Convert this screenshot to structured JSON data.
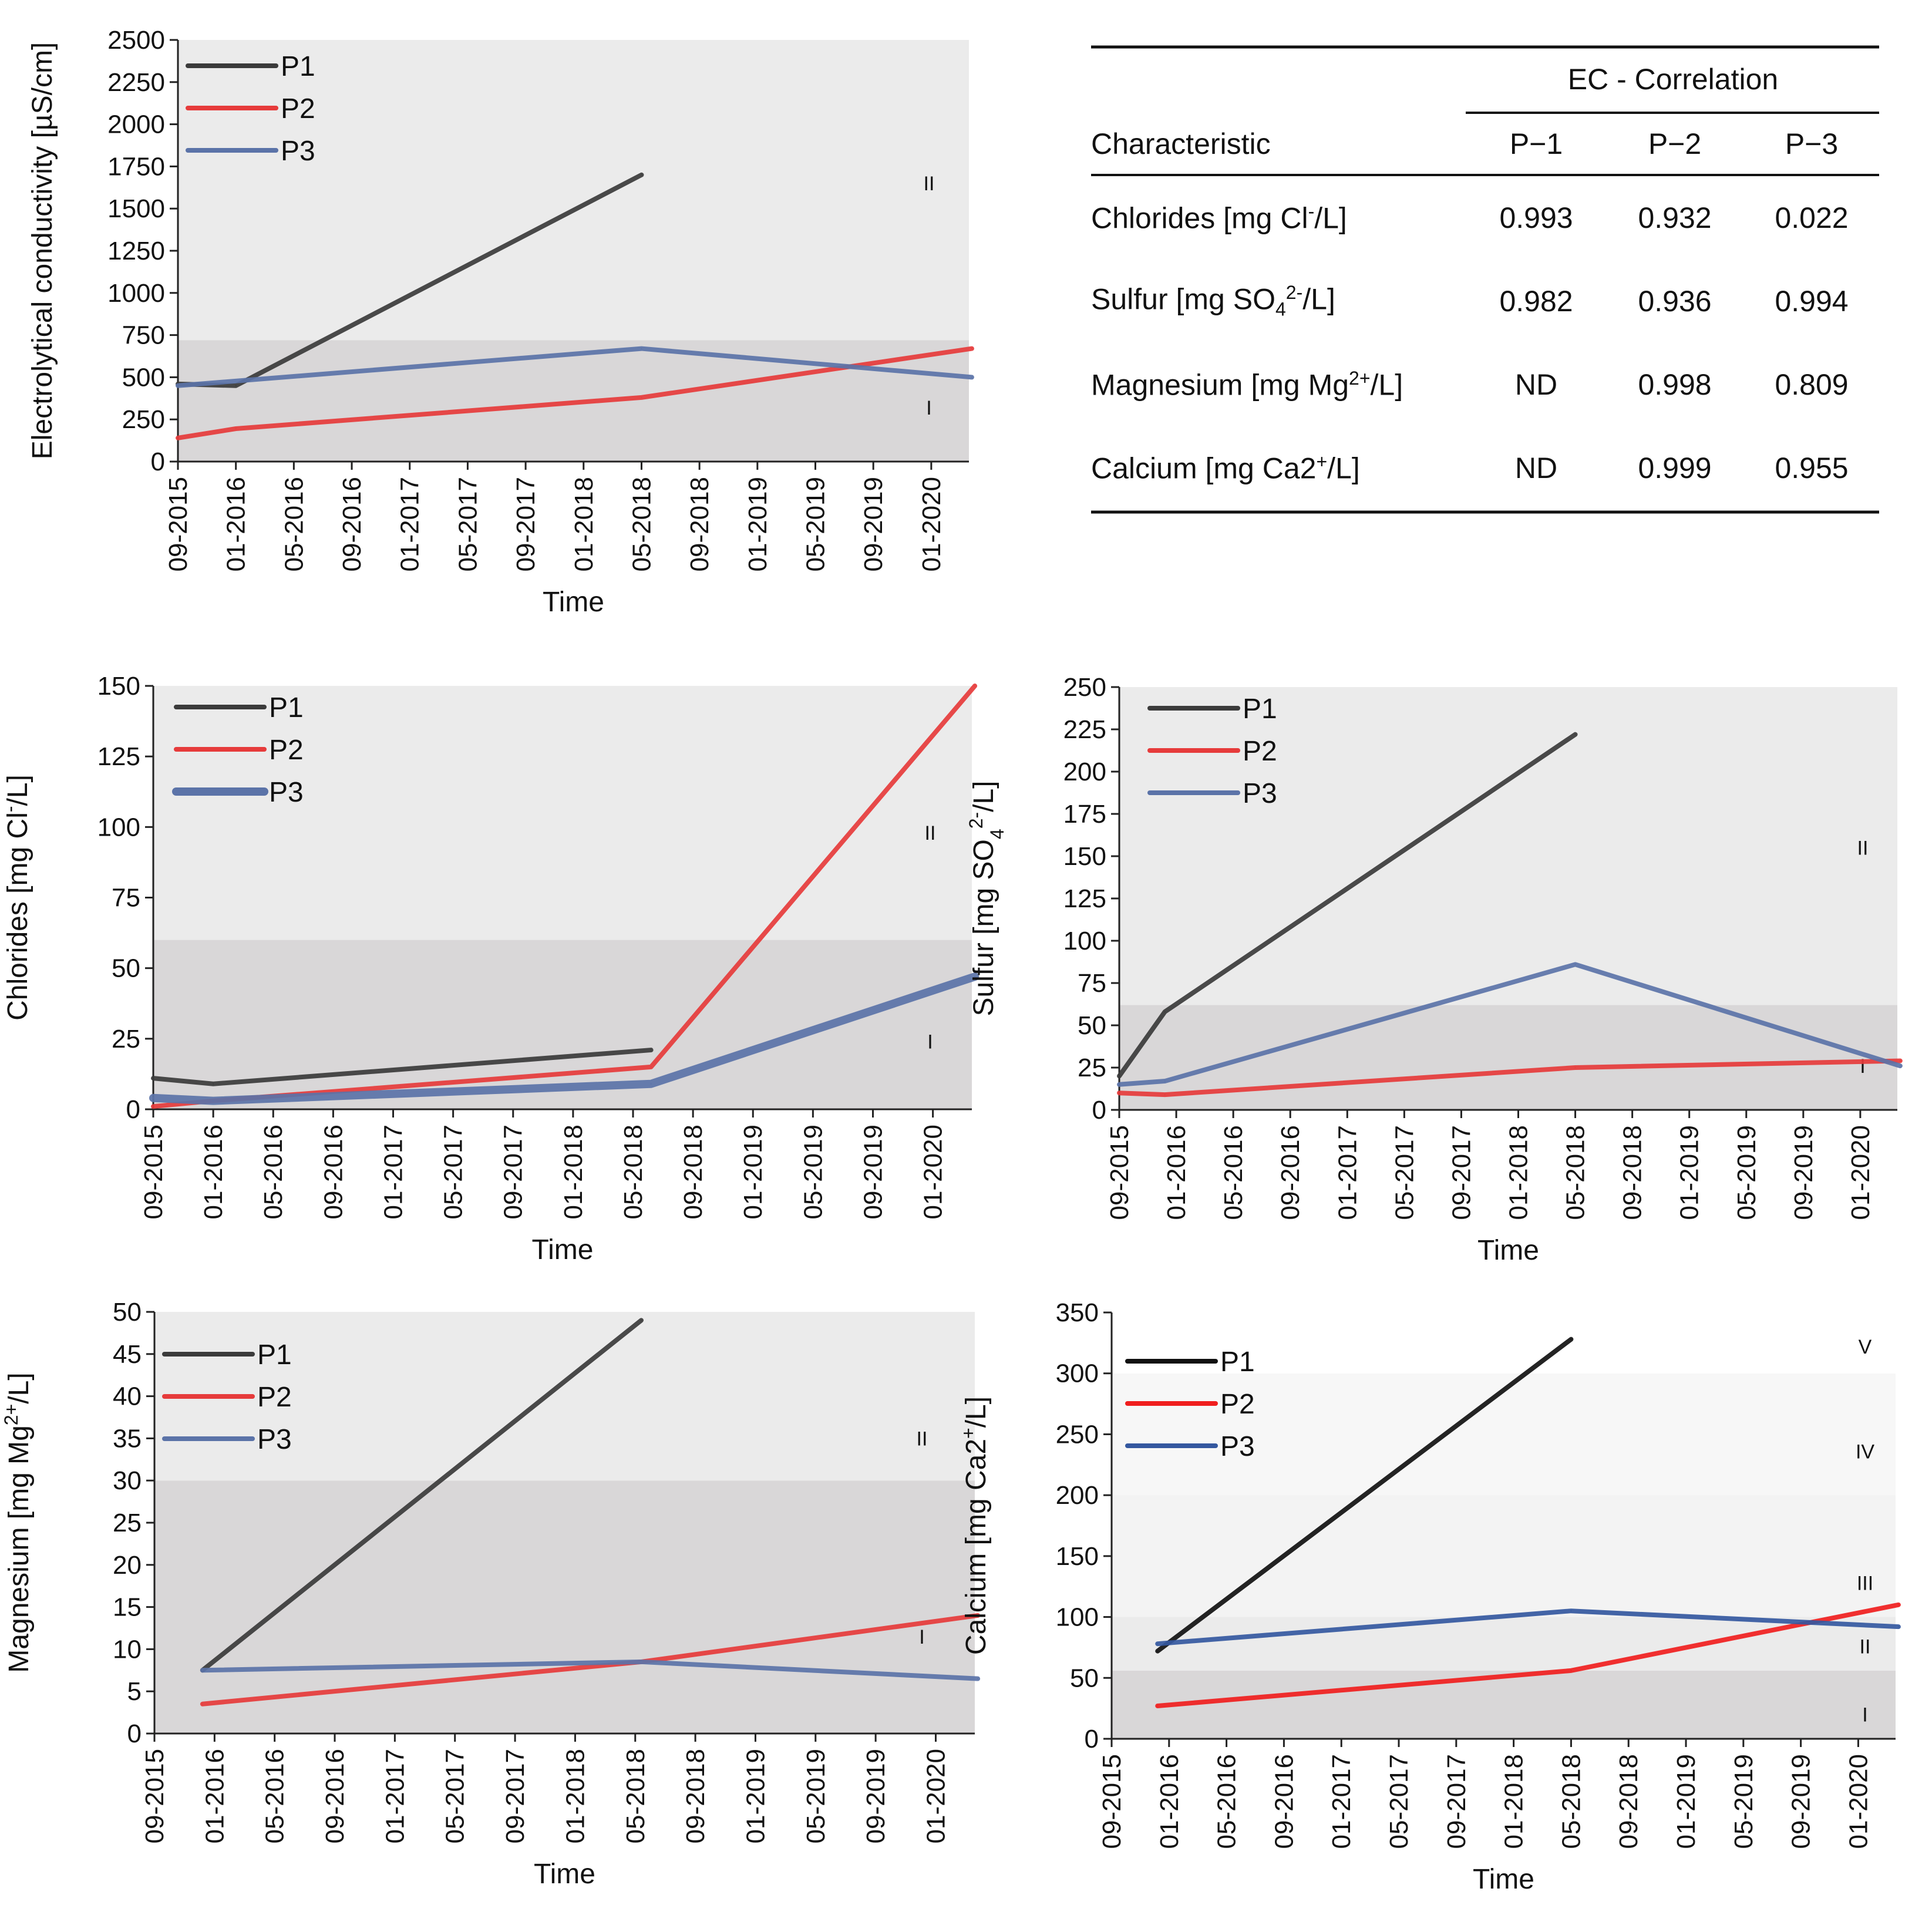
{
  "colors": {
    "P1": "#3b3b3b",
    "P2": "#e63b3b",
    "P3": "#5b73a8",
    "P1_dark": "#111111",
    "P2_bright": "#f01e1e",
    "P3_dark": "#34589f"
  },
  "table": {
    "group_header": "EC - Correlation",
    "header": [
      "Characteristic",
      "P−1",
      "P−2",
      "P−3"
    ],
    "rows": [
      {
        "pre": "Chlorides [mg Cl",
        "sup": "-",
        "sub": "",
        "post": "/L]",
        "v": [
          "0.993",
          "0.932",
          "0.022"
        ]
      },
      {
        "pre": "Sulfur [mg  SO",
        "sub": "4",
        "sup": "2-",
        "post": "/L]",
        "v": [
          "0.982",
          "0.936",
          "0.994"
        ]
      },
      {
        "pre": "Magnesium [mg Mg",
        "sub": "",
        "sup": "2+",
        "post": "/L]",
        "v": [
          "ND",
          "0.998",
          "0.809"
        ]
      },
      {
        "pre": "Calcium [mg Ca2",
        "sub": "",
        "sup": "+",
        "post": "/L]",
        "v": [
          "ND",
          "0.999",
          "0.955"
        ]
      }
    ]
  },
  "chart_data": [
    {
      "type": "line",
      "id": "ec",
      "ylabel": "Electrolytical conductivity [µS/cm]",
      "ylabel_parts": {
        "pre": "Electrolytical conductivity [µS/cm]",
        "sub": "",
        "sup": "",
        "post": ""
      },
      "xlabel": "Time",
      "ylim": [
        0,
        2500
      ],
      "yticks": [
        0,
        250,
        500,
        750,
        1000,
        1250,
        1500,
        1750,
        2000,
        2250,
        2500
      ],
      "xticks": [
        "09-2015",
        "01-2016",
        "05-2016",
        "09-2016",
        "01-2017",
        "05-2017",
        "09-2017",
        "01-2018",
        "05-2018",
        "09-2018",
        "01-2019",
        "05-2019",
        "09-2019",
        "01-2020"
      ],
      "zones": [
        {
          "from": 0,
          "to": 720,
          "label": "I",
          "shade": "#d9d7d8",
          "label_y": 320
        },
        {
          "from": 720,
          "to": 2500,
          "label": "II",
          "shade": "#ebebeb",
          "label_y": 1650
        }
      ],
      "series": [
        {
          "name": "P1",
          "x": [
            0,
            1,
            8
          ],
          "values": [
            460,
            450,
            1700
          ]
        },
        {
          "name": "P2",
          "x": [
            0,
            1,
            8,
            13.7
          ],
          "values": [
            140,
            195,
            380,
            670
          ]
        },
        {
          "name": "P3",
          "x": [
            0,
            8,
            13.7
          ],
          "values": [
            450,
            670,
            500
          ]
        }
      ]
    },
    {
      "type": "line",
      "id": "cl",
      "ylabel": "Chlorides [mg Cl-/L]",
      "ylabel_parts": {
        "pre": "Chlorides [mg Cl",
        "sub": "",
        "sup": "-",
        "post": "/L]"
      },
      "xlabel": "Time",
      "ylim": [
        0,
        150
      ],
      "yticks": [
        0,
        25,
        50,
        75,
        100,
        125,
        150
      ],
      "xticks": [
        "09-2015",
        "01-2016",
        "05-2016",
        "09-2016",
        "01-2017",
        "05-2017",
        "09-2017",
        "01-2018",
        "05-2018",
        "09-2018",
        "01-2019",
        "05-2019",
        "09-2019",
        "01-2020"
      ],
      "zones": [
        {
          "from": 0,
          "to": 60,
          "label": "I",
          "shade": "#d9d7d8",
          "label_y": 24
        },
        {
          "from": 60,
          "to": 150,
          "label": "II",
          "shade": "#ebebeb",
          "label_y": 98
        }
      ],
      "series": [
        {
          "name": "P1",
          "x": [
            0,
            1,
            8.3
          ],
          "values": [
            11,
            9,
            21
          ]
        },
        {
          "name": "P2",
          "x": [
            0,
            1,
            8.3,
            13.7
          ],
          "values": [
            1,
            3,
            15,
            151
          ]
        },
        {
          "name": "P3",
          "x": [
            0,
            1,
            8.3,
            13.7
          ],
          "values": [
            4,
            3,
            9,
            47
          ],
          "thick": true
        }
      ]
    },
    {
      "type": "line",
      "id": "so4",
      "ylabel": "Sulfur [mg  SO42-/L]",
      "ylabel_parts": {
        "pre": "Sulfur [mg  SO",
        "sub": "4",
        "sup": "2-",
        "post": "/L]"
      },
      "xlabel": "Time",
      "ylim": [
        0,
        250
      ],
      "yticks": [
        0,
        25,
        50,
        75,
        100,
        125,
        150,
        175,
        200,
        225,
        250
      ],
      "xticks": [
        "09-2015",
        "01-2016",
        "05-2016",
        "09-2016",
        "01-2017",
        "05-2017",
        "09-2017",
        "01-2018",
        "05-2018",
        "09-2018",
        "01-2019",
        "05-2019",
        "09-2019",
        "01-2020"
      ],
      "zones": [
        {
          "from": 0,
          "to": 62,
          "label": "I",
          "shade": "#d9d7d8",
          "label_y": 26
        },
        {
          "from": 62,
          "to": 250,
          "label": "II",
          "shade": "#ebebeb",
          "label_y": 155
        }
      ],
      "series": [
        {
          "name": "P1",
          "x": [
            0,
            0.8,
            8
          ],
          "values": [
            20,
            58,
            222
          ]
        },
        {
          "name": "P2",
          "x": [
            0,
            0.8,
            8,
            13.7
          ],
          "values": [
            10,
            9,
            25,
            29
          ]
        },
        {
          "name": "P3",
          "x": [
            0,
            0.8,
            8,
            13.7
          ],
          "values": [
            15,
            17,
            86,
            26
          ]
        }
      ]
    },
    {
      "type": "line",
      "id": "mg",
      "ylabel": "Magnesium [mg Mg2+/L]",
      "ylabel_parts": {
        "pre": "Magnesium [mg Mg",
        "sub": "",
        "sup": "2+",
        "post": "/L]"
      },
      "xlabel": "Time",
      "ylim": [
        0,
        50
      ],
      "yticks": [
        0,
        5,
        10,
        15,
        20,
        25,
        30,
        35,
        40,
        45,
        50
      ],
      "xticks": [
        "09-2015",
        "01-2016",
        "05-2016",
        "09-2016",
        "01-2017",
        "05-2017",
        "09-2017",
        "01-2018",
        "05-2018",
        "09-2018",
        "01-2019",
        "05-2019",
        "09-2019",
        "01-2020"
      ],
      "zones": [
        {
          "from": 0,
          "to": 30,
          "label": "I",
          "shade": "#d9d7d8",
          "label_y": 11.5
        },
        {
          "from": 30,
          "to": 50,
          "label": "II",
          "shade": "#ebebeb",
          "label_y": 35
        }
      ],
      "series": [
        {
          "name": "P1",
          "x": [
            0.8,
            8.1
          ],
          "values": [
            7.5,
            49
          ]
        },
        {
          "name": "P2",
          "x": [
            0.8,
            8.1,
            13.7
          ],
          "values": [
            3.5,
            8.5,
            14
          ]
        },
        {
          "name": "P3",
          "x": [
            0.8,
            8.1,
            13.7
          ],
          "values": [
            7.5,
            8.5,
            6.5
          ]
        }
      ]
    },
    {
      "type": "line",
      "id": "ca",
      "ylabel": "Calcium [mg Ca2+/L]",
      "ylabel_parts": {
        "pre": "Calcium [mg Ca2",
        "sub": "",
        "sup": "+",
        "post": "/L]"
      },
      "xlabel": "Time",
      "ylim": [
        0,
        350
      ],
      "yticks": [
        0,
        50,
        100,
        150,
        200,
        250,
        300,
        350
      ],
      "xticks": [
        "09-2015",
        "01-2016",
        "05-2016",
        "09-2016",
        "01-2017",
        "05-2017",
        "09-2017",
        "01-2018",
        "05-2018",
        "09-2018",
        "01-2019",
        "05-2019",
        "09-2019",
        "01-2020"
      ],
      "zones": [
        {
          "from": 0,
          "to": 56,
          "label": "I",
          "shade": "#d9d7d8",
          "label_y": 20
        },
        {
          "from": 56,
          "to": 100,
          "label": "II",
          "shade": "#ebebeb",
          "label_y": 76
        },
        {
          "from": 100,
          "to": 200,
          "label": "III",
          "shade": "#f3f3f3",
          "label_y": 128
        },
        {
          "from": 200,
          "to": 300,
          "label": "IV",
          "shade": "#f7f7f7",
          "label_y": 236
        },
        {
          "from": 300,
          "to": 350,
          "label": "V",
          "shade": "#ffffff",
          "label_y": 322
        }
      ],
      "series": [
        {
          "name": "P1",
          "x": [
            0.8,
            8
          ],
          "values": [
            72,
            328
          ],
          "dark": true
        },
        {
          "name": "P2",
          "x": [
            0.8,
            8,
            13.7
          ],
          "values": [
            27,
            56,
            110
          ],
          "dark": true
        },
        {
          "name": "P3",
          "x": [
            0.8,
            8,
            13.7
          ],
          "values": [
            78,
            105,
            92
          ],
          "dark": true
        }
      ]
    }
  ]
}
